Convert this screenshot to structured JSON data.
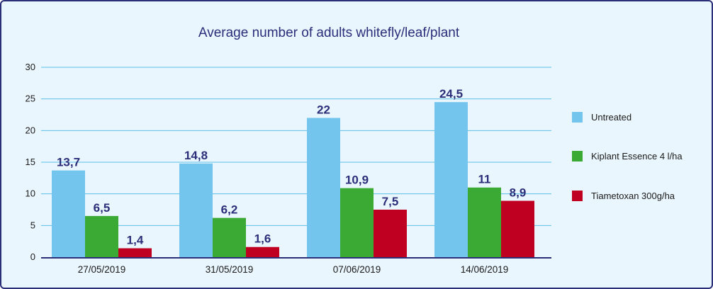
{
  "chart_data": {
    "type": "bar",
    "title": "Average number of adults whitefly/leaf/plant",
    "categories": [
      "27/05/2019",
      "31/05/2019",
      "07/06/2019",
      "14/06/2019"
    ],
    "series": [
      {
        "name": "Untreated",
        "color": "#74c5ee",
        "values": [
          13.7,
          14.8,
          22,
          24.5
        ],
        "labels": [
          "13,7",
          "14,8",
          "22",
          "24,5"
        ]
      },
      {
        "name": "Kiplant Essence 4 l/ha",
        "color": "#3aaa35",
        "values": [
          6.5,
          6.2,
          10.9,
          11
        ],
        "labels": [
          "6,5",
          "6,2",
          "10,9",
          "11"
        ]
      },
      {
        "name": "Tiametoxan 300g/ha",
        "color": "#c00020",
        "values": [
          1.4,
          1.6,
          7.5,
          8.9
        ],
        "labels": [
          "1,4",
          "1,6",
          "7,5",
          "8,9"
        ]
      }
    ],
    "ylim": [
      0,
      30
    ],
    "yticks": [
      0,
      5,
      10,
      15,
      20,
      25,
      30
    ],
    "grid": true,
    "gridline_color": "#5bc0e8",
    "axis_color": "#2b2f7a",
    "legend_position": "right"
  }
}
